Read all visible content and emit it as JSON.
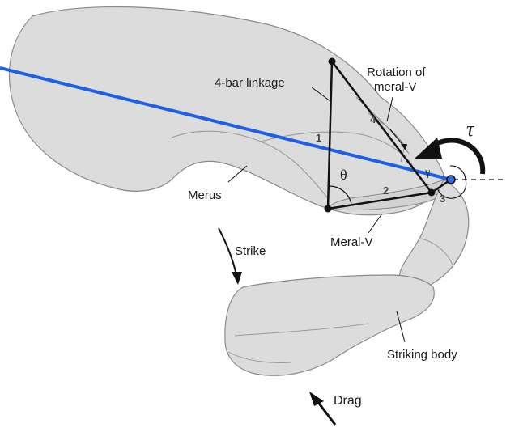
{
  "labels": {
    "four_bar_linkage": "4-bar linkage",
    "rotation_line1": "Rotation of",
    "rotation_line2": "meral-V",
    "merus": "Merus",
    "meral_v": "Meral-V",
    "strike": "Strike",
    "striking_body": "Striking body",
    "drag": "Drag"
  },
  "link_numbers": {
    "link1": "1",
    "link2": "2",
    "link3": "3",
    "link4": "4"
  },
  "symbols": {
    "tau": "τ",
    "theta": "θ",
    "gamma": "γ"
  },
  "colors": {
    "body_fill": "#dcdcdc",
    "body_outline": "#8a8a8a",
    "axis_line": "#1e5fe6",
    "linkage": "#111111",
    "pivot_blue": "#2a6de0"
  }
}
